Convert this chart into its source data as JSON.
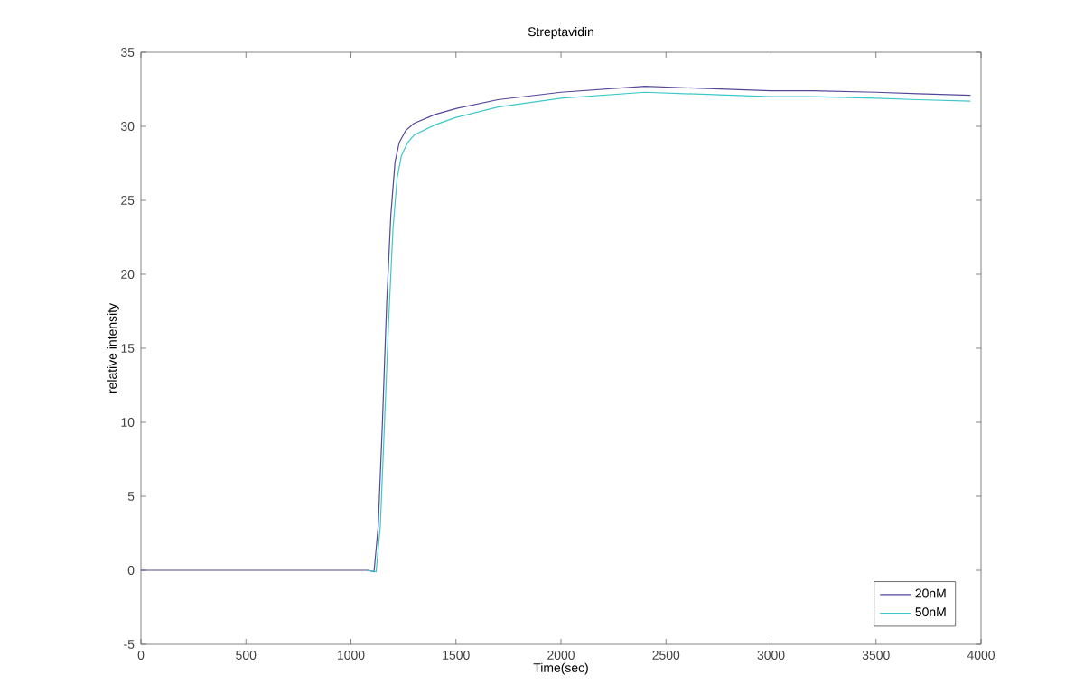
{
  "chart_data": {
    "type": "line",
    "title": "Streptavidin",
    "xlabel": "Time(sec)",
    "ylabel": "relative intensity",
    "xlim": [
      0,
      4000
    ],
    "xticks": [
      0,
      500,
      1000,
      1500,
      2000,
      2500,
      3000,
      3500,
      4000
    ],
    "ylim": [
      -5,
      35
    ],
    "yticks": [
      -5,
      0,
      5,
      10,
      15,
      20,
      25,
      30,
      35
    ],
    "grid": false,
    "legend": "bottom right",
    "marker": "none",
    "line_style": "solid",
    "series": [
      {
        "name": "20nM",
        "color": "#55469a",
        "x": [
          0,
          200,
          400,
          600,
          800,
          1000,
          1080,
          1110,
          1130,
          1150,
          1170,
          1190,
          1210,
          1230,
          1260,
          1300,
          1400,
          1500,
          1700,
          2000,
          2200,
          2400,
          2600,
          2800,
          3000,
          3200,
          3500,
          3700,
          3950
        ],
        "values": [
          0,
          0,
          0,
          0,
          0,
          0,
          0,
          -0.1,
          3,
          10,
          18,
          24,
          27.6,
          28.9,
          29.7,
          30.2,
          30.8,
          31.2,
          31.8,
          32.3,
          32.5,
          32.7,
          32.6,
          32.5,
          32.4,
          32.4,
          32.3,
          32.2,
          32.1
        ]
      },
      {
        "name": "50nM",
        "color": "#3cc8c8",
        "x": [
          1080,
          1120,
          1140,
          1160,
          1180,
          1200,
          1220,
          1240,
          1270,
          1300,
          1400,
          1500,
          1700,
          2000,
          2200,
          2400,
          2600,
          2800,
          3000,
          3200,
          3500,
          3700,
          3950
        ],
        "values": [
          0,
          -0.1,
          3,
          10,
          17,
          23,
          26.5,
          28.0,
          28.9,
          29.4,
          30.1,
          30.6,
          31.3,
          31.9,
          32.1,
          32.3,
          32.2,
          32.1,
          32.0,
          32.0,
          31.9,
          31.8,
          31.7
        ]
      }
    ]
  }
}
